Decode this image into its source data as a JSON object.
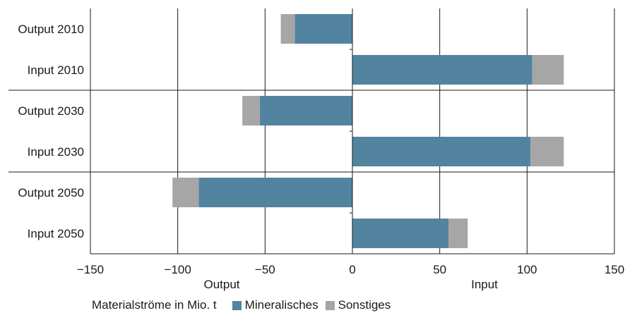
{
  "chart_data": {
    "type": "bar",
    "orientation": "horizontal",
    "stacked": true,
    "categories": [
      "Output 2010",
      "Input 2010",
      "Output 2030",
      "Input 2030",
      "Output 2050",
      "Input 2050"
    ],
    "series": [
      {
        "name": "Mineralisches",
        "color": "#52849f",
        "values": [
          -33,
          103,
          -53,
          102,
          -88,
          55
        ]
      },
      {
        "name": "Sonstiges",
        "color": "#a6a6a6",
        "values": [
          -8,
          18,
          -10,
          19,
          -15,
          11
        ]
      }
    ],
    "xlim": [
      -150,
      150
    ],
    "x_ticks": [
      "−150",
      "−100",
      "−50",
      "0",
      "50",
      "100",
      "150"
    ],
    "x_tick_values": [
      -150,
      -100,
      -50,
      0,
      50,
      100,
      150
    ],
    "axis_labels": {
      "left": "Output",
      "right": "Input"
    },
    "grid": "vertical",
    "legend_position": "bottom",
    "unit_label": "Materialströme in Mio. t"
  },
  "legend": {
    "unit_label": "Materialströme in Mio. t",
    "mineral_label": "Mineralisches",
    "other_label": "Sonstiges"
  }
}
